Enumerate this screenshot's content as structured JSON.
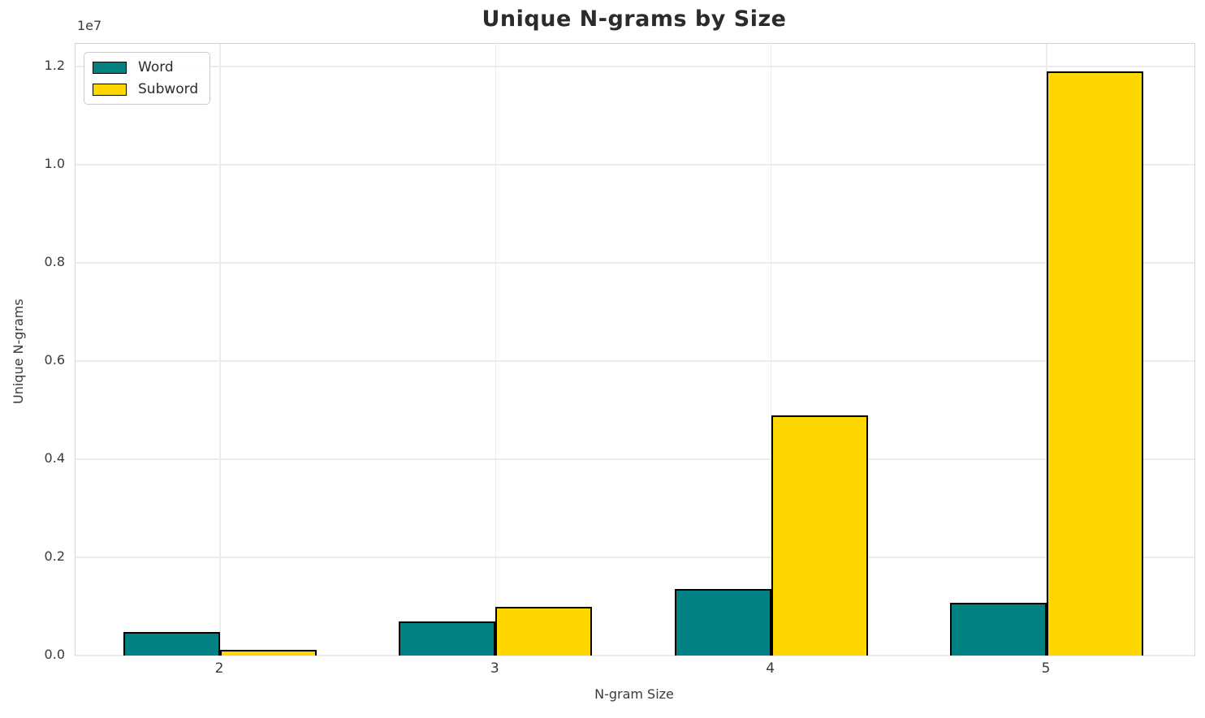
{
  "chart_data": {
    "type": "bar",
    "title": "Unique N-grams by Size",
    "xlabel": "N-gram Size",
    "ylabel": "Unique N-grams",
    "y_offset_label": "1e7",
    "categories": [
      "2",
      "3",
      "4",
      "5"
    ],
    "series": [
      {
        "name": "Word",
        "color": "#008080",
        "values": [
          480000,
          700000,
          1350000,
          1080000
        ]
      },
      {
        "name": "Subword",
        "color": "#FFD700",
        "values": [
          120000,
          1000000,
          4900000,
          11900000
        ]
      }
    ],
    "y_ticks": [
      {
        "label": "0.0",
        "value": 0
      },
      {
        "label": "0.2",
        "value": 2000000
      },
      {
        "label": "0.4",
        "value": 4000000
      },
      {
        "label": "0.6",
        "value": 6000000
      },
      {
        "label": "0.8",
        "value": 8000000
      },
      {
        "label": "1.0",
        "value": 10000000
      },
      {
        "label": "1.2",
        "value": 12000000
      }
    ],
    "ylim": [
      0,
      12000000
    ],
    "grid": true,
    "legend_position": "upper left",
    "bar_edge_color": "#000000",
    "background_color": "#ffffff"
  }
}
